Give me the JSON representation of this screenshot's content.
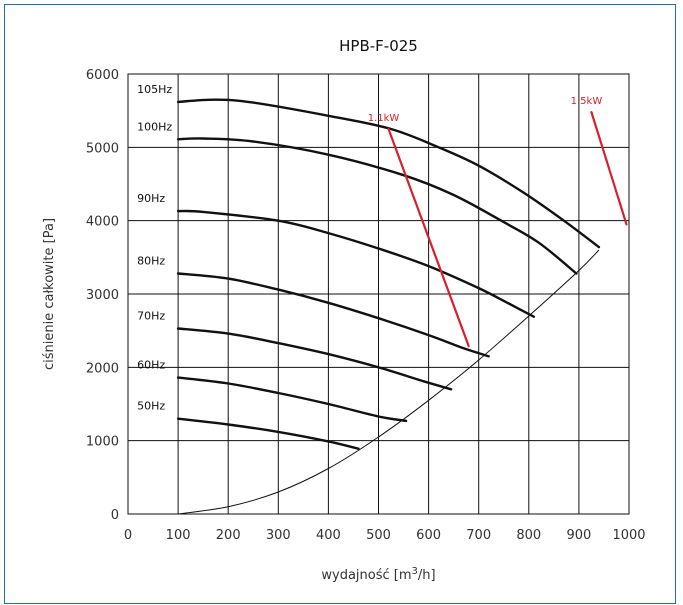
{
  "chart_data": {
    "type": "line",
    "title": "HPB-F-025",
    "xlabel": "wydajność [m3/h]",
    "xlabel_parts": {
      "prefix": "wydajność [m",
      "sup": "3",
      "suffix": "/h]"
    },
    "ylabel": "ciśnienie całkowite [Pa]",
    "xlim": [
      0,
      1000
    ],
    "ylim": [
      0,
      6000
    ],
    "x_ticks": [
      "0",
      "100",
      "200",
      "300",
      "400",
      "500",
      "600",
      "700",
      "800",
      "900",
      "1000"
    ],
    "y_ticks": [
      "0",
      "1000",
      "2000",
      "3000",
      "4000",
      "5000",
      "6000"
    ],
    "grid": true,
    "series": [
      {
        "name": "105Hz",
        "x": [
          100,
          175,
          250,
          400,
          525,
          620,
          700,
          790,
          870,
          940
        ],
        "y": [
          5620,
          5650,
          5610,
          5430,
          5250,
          5000,
          4750,
          4380,
          4000,
          3640
        ]
      },
      {
        "name": "100Hz",
        "x": [
          100,
          150,
          250,
          400,
          550,
          650,
          750,
          820,
          895
        ],
        "y": [
          5110,
          5120,
          5080,
          4900,
          4620,
          4350,
          3980,
          3700,
          3280
        ]
      },
      {
        "name": "90Hz",
        "x": [
          100,
          150,
          300,
          400,
          500,
          600,
          700,
          760,
          810
        ],
        "y": [
          4130,
          4120,
          4000,
          3830,
          3620,
          3380,
          3080,
          2870,
          2690
        ]
      },
      {
        "name": "80Hz",
        "x": [
          100,
          200,
          300,
          400,
          500,
          600,
          670,
          720
        ],
        "y": [
          3280,
          3210,
          3060,
          2880,
          2670,
          2440,
          2260,
          2150
        ]
      },
      {
        "name": "70Hz",
        "x": [
          100,
          200,
          300,
          400,
          500,
          590,
          645
        ],
        "y": [
          2530,
          2460,
          2330,
          2180,
          2000,
          1810,
          1700
        ]
      },
      {
        "name": "60Hz",
        "x": [
          100,
          200,
          300,
          400,
          500,
          555
        ],
        "y": [
          1860,
          1780,
          1650,
          1500,
          1330,
          1270
        ]
      },
      {
        "name": "50Hz",
        "x": [
          100,
          200,
          300,
          400,
          460
        ],
        "y": [
          1300,
          1220,
          1120,
          990,
          890
        ]
      }
    ],
    "system_curve": {
      "x": [
        100,
        200,
        300,
        400,
        500,
        600,
        700,
        800,
        900,
        940
      ],
      "y": [
        0,
        100,
        300,
        620,
        1050,
        1550,
        2100,
        2700,
        3320,
        3600
      ]
    },
    "power_lines": [
      {
        "label": "1.1kW",
        "x": [
          520,
          680
        ],
        "y": [
          5250,
          2290
        ],
        "color": "#d9202a"
      },
      {
        "label": "1.5kW",
        "x": [
          925,
          995
        ],
        "y": [
          5480,
          3950
        ],
        "color": "#d9202a"
      }
    ]
  }
}
